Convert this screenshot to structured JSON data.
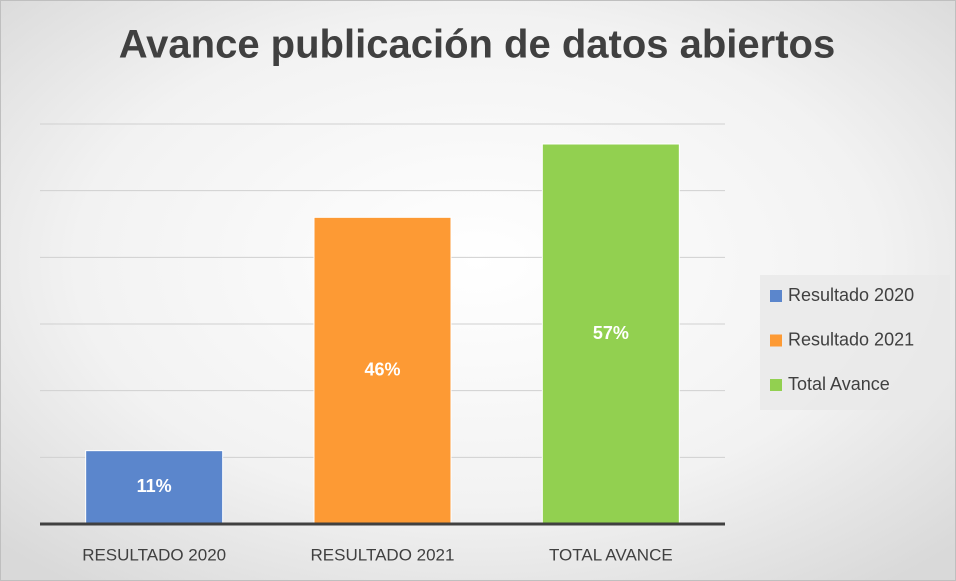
{
  "chart_data": {
    "type": "bar",
    "title": "Avance publicación de datos abiertos",
    "categories": [
      "RESULTADO 2020",
      "RESULTADO 2021",
      "TOTAL AVANCE"
    ],
    "series": [
      {
        "name": "Resultado 2020",
        "color": "#5b86cc",
        "values": [
          11,
          null,
          null
        ],
        "value_labels": [
          "11%",
          null,
          null
        ]
      },
      {
        "name": "Resultado 2021",
        "color": "#fd9a34",
        "values": [
          null,
          46,
          null
        ],
        "value_labels": [
          null,
          "46%",
          null
        ]
      },
      {
        "name": "Total Avance",
        "color": "#92d050",
        "values": [
          null,
          null,
          57
        ],
        "value_labels": [
          null,
          null,
          "57%"
        ]
      }
    ],
    "ylim": [
      0,
      60
    ],
    "yticks": [
      0,
      10,
      20,
      30,
      40,
      50,
      60
    ],
    "grid": true,
    "legend": "right"
  }
}
